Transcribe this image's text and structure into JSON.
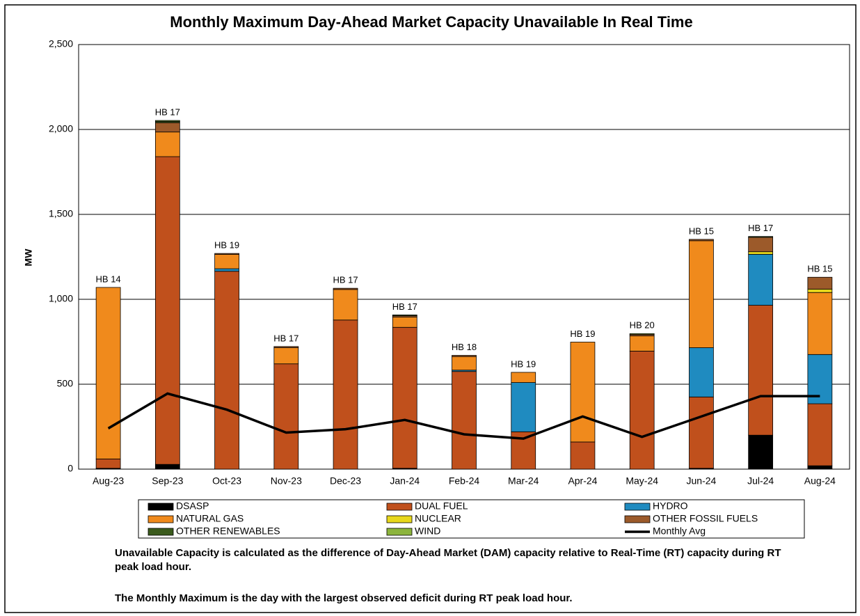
{
  "chart_data": {
    "type": "stacked-bar-line",
    "title": "Monthly Maximum Day-Ahead Market Capacity Unavailable In Real Time",
    "y_label": "MW",
    "categories": [
      "Aug-23",
      "Sep-23",
      "Oct-23",
      "Nov-23",
      "Dec-23",
      "Jan-24",
      "Feb-24",
      "Mar-24",
      "Apr-24",
      "May-24",
      "Jun-24",
      "Jul-24",
      "Aug-24"
    ],
    "annotations": [
      "HB 14",
      "HB 17",
      "HB 19",
      "HB 17",
      "HB 17",
      "HB 17",
      "HB 18",
      "HB 19",
      "HB 19",
      "HB 20",
      "HB 15",
      "HB 17",
      "HB 15"
    ],
    "series": [
      {
        "name": "DSASP",
        "color": "#000000",
        "values": [
          5,
          28,
          0,
          0,
          0,
          5,
          0,
          0,
          0,
          0,
          5,
          200,
          20
        ]
      },
      {
        "name": "DUAL FUEL",
        "color": "#c0501c",
        "values": [
          55,
          1812,
          1165,
          620,
          878,
          830,
          575,
          220,
          160,
          695,
          420,
          765,
          365
        ]
      },
      {
        "name": "HYDRO",
        "color": "#1f8bc0",
        "values": [
          0,
          0,
          15,
          0,
          0,
          0,
          8,
          290,
          0,
          0,
          290,
          300,
          290
        ]
      },
      {
        "name": "NATURAL GAS",
        "color": "#f08a1c",
        "values": [
          1010,
          145,
          85,
          95,
          180,
          60,
          80,
          60,
          588,
          90,
          630,
          0,
          365
        ]
      },
      {
        "name": "NUCLEAR",
        "color": "#e8d81c",
        "values": [
          0,
          0,
          0,
          0,
          0,
          0,
          0,
          0,
          0,
          0,
          0,
          15,
          20
        ]
      },
      {
        "name": "OTHER FOSSIL FUELS",
        "color": "#9c5a2a",
        "values": [
          0,
          55,
          5,
          7,
          7,
          8,
          7,
          0,
          0,
          8,
          8,
          85,
          70
        ]
      },
      {
        "name": "OTHER RENEWABLES",
        "color": "#3a5a1c",
        "values": [
          0,
          8,
          0,
          0,
          0,
          5,
          0,
          0,
          0,
          0,
          0,
          5,
          0
        ]
      },
      {
        "name": "WIND",
        "color": "#8cb43c",
        "values": [
          0,
          5,
          0,
          0,
          0,
          0,
          0,
          0,
          0,
          5,
          0,
          0,
          0
        ]
      }
    ],
    "line": {
      "name": "Monthly Avg",
      "color": "#000000",
      "values": [
        240,
        445,
        350,
        215,
        235,
        290,
        205,
        180,
        310,
        190,
        310,
        430,
        430
      ]
    },
    "ylim": [
      0,
      2500
    ],
    "yticks": [
      0,
      500,
      {
        "value": 1000,
        "label": "1,000"
      },
      {
        "value": 1500,
        "label": "1,500"
      },
      {
        "value": 2000,
        "label": "2,000"
      },
      {
        "value": 2500,
        "label": "2,500"
      }
    ],
    "grid": true,
    "notes": [
      "Unavailable Capacity is calculated as the difference of Day-Ahead Market (DAM) capacity relative to Real-Time (RT) capacity during RT peak load hour.",
      "The Monthly Maximum is the day with the largest observed deficit during RT peak load hour."
    ]
  }
}
